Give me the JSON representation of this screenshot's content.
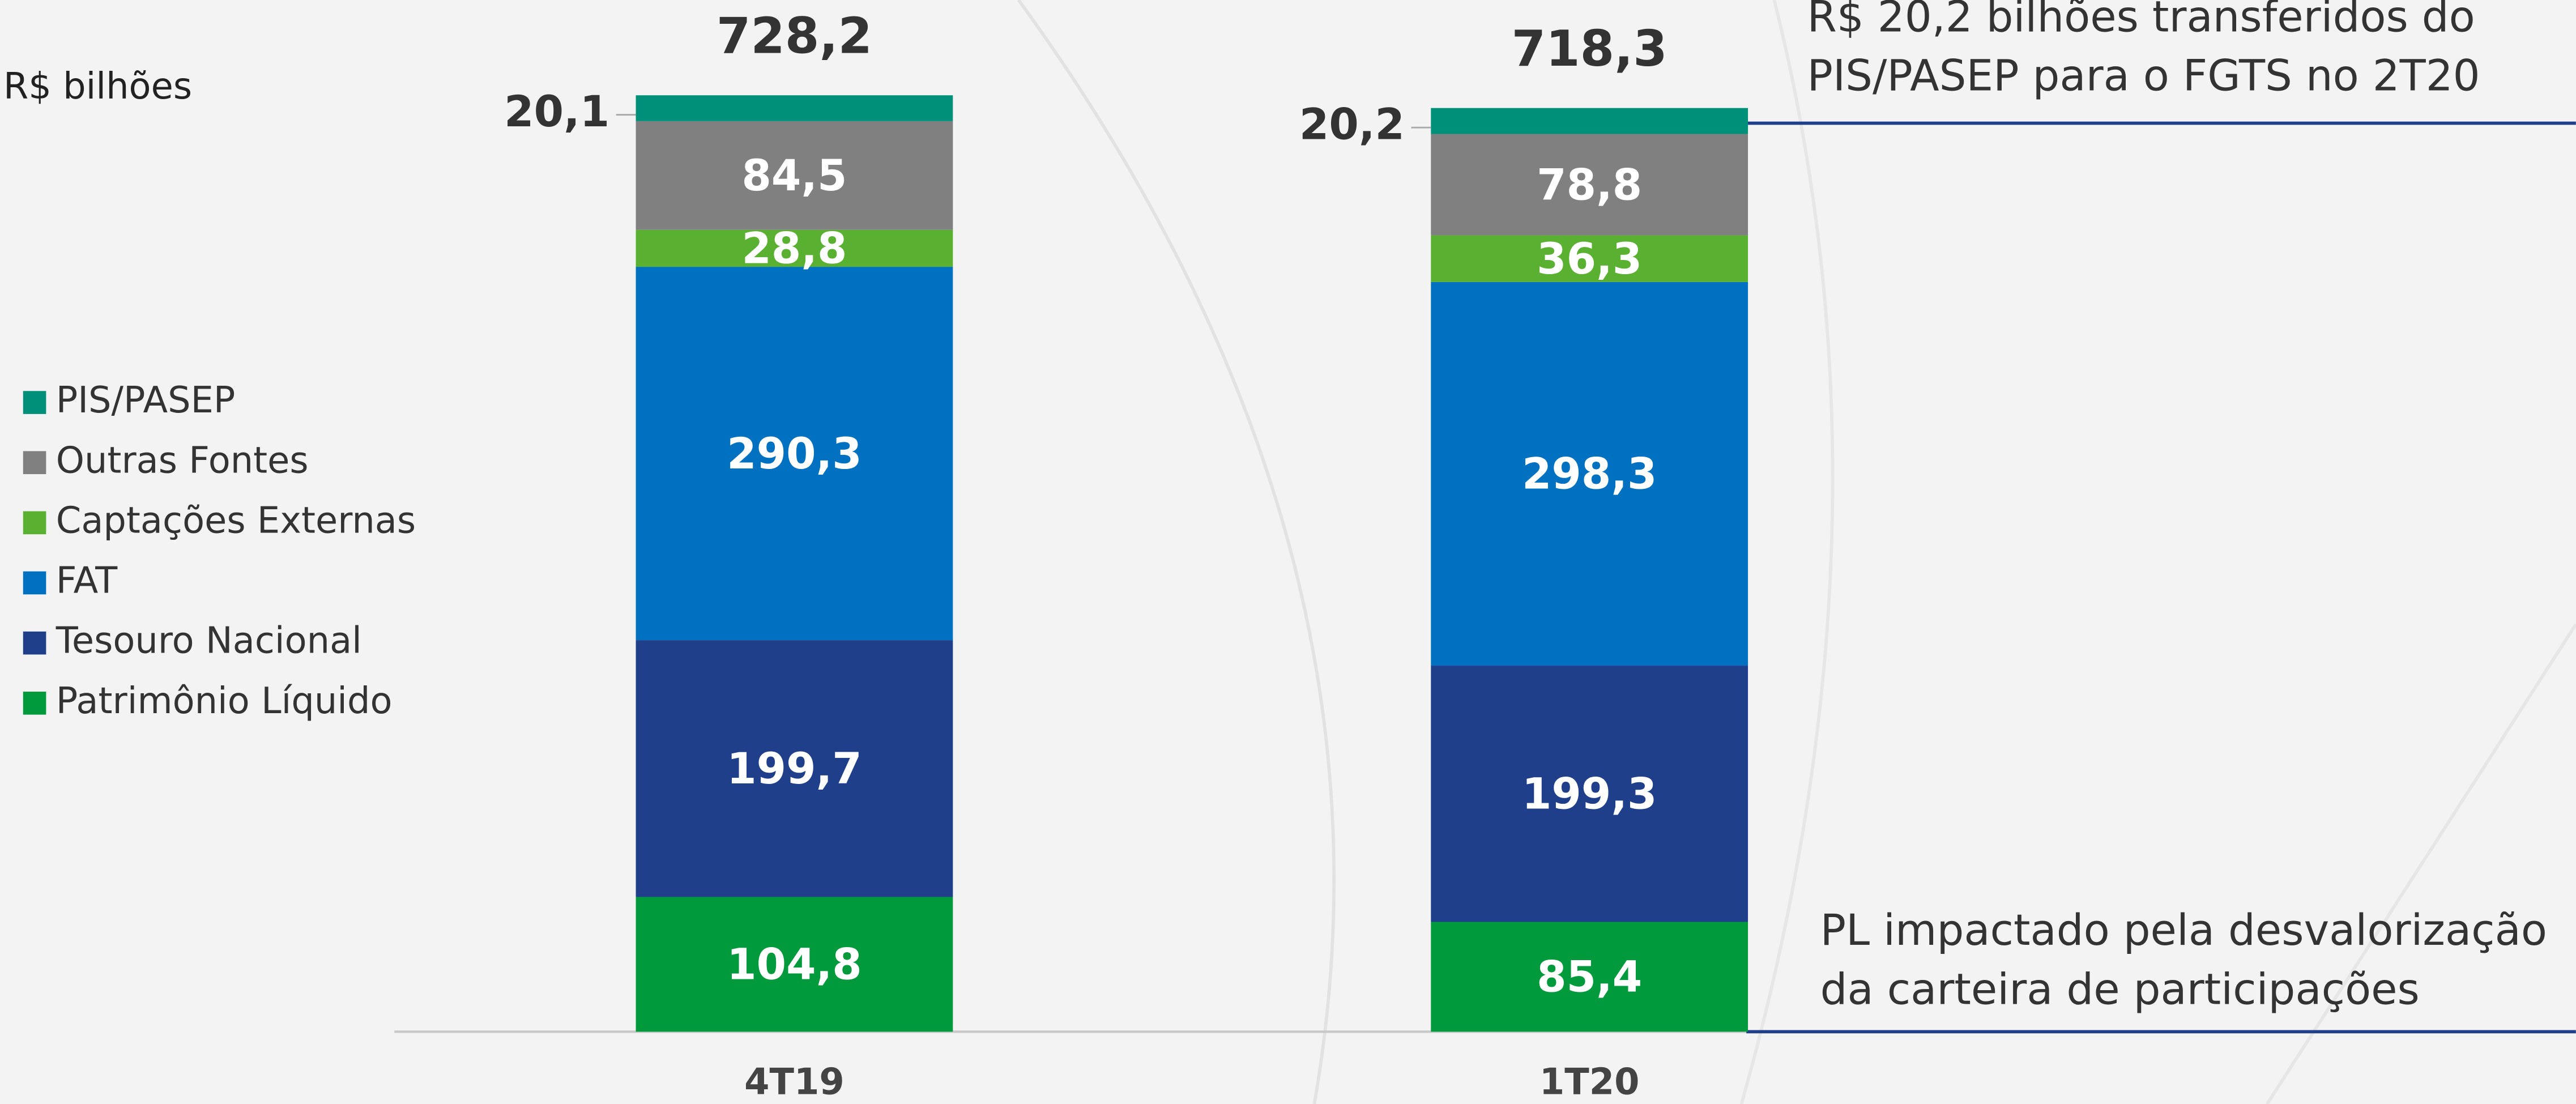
{
  "chart_data": {
    "type": "stacked_bar",
    "unit_label": "R$ bilhões",
    "categories": [
      "4T19",
      "1T20"
    ],
    "series": [
      {
        "name": "Patrimônio Líquido",
        "color": "#009a3c",
        "values": [
          104.8,
          85.4
        ],
        "value_labels": [
          "104,8",
          "85,4"
        ]
      },
      {
        "name": "Tesouro Nacional",
        "color": "#1f3f8a",
        "values": [
          199.7,
          199.3
        ],
        "value_labels": [
          "199,7",
          "199,3"
        ]
      },
      {
        "name": "FAT",
        "color": "#0070c0",
        "values": [
          290.3,
          298.3
        ],
        "value_labels": [
          "290,3",
          "298,3"
        ]
      },
      {
        "name": "Captações Externas",
        "color": "#5ab031",
        "values": [
          28.8,
          36.3
        ],
        "value_labels": [
          "28,8",
          "36,3"
        ]
      },
      {
        "name": "Outras Fontes",
        "color": "#808080",
        "values": [
          84.5,
          78.8
        ],
        "value_labels": [
          "84,5",
          "78,8"
        ]
      },
      {
        "name": "PIS/PASEP",
        "color": "#00907a",
        "values": [
          20.1,
          20.2
        ],
        "value_labels": [
          "20,1",
          "20,2"
        ]
      }
    ],
    "totals": [
      728.2,
      718.3
    ],
    "total_labels": [
      "728,2",
      "718,3"
    ],
    "annotations": [
      {
        "lines": [
          "R$ 20,2 bilhões transferidos do",
          "PIS/PASEP para o FGTS no 2T20"
        ]
      },
      {
        "lines": [
          "PL impactado pela desvalorização",
          "da carteira de participações"
        ]
      }
    ]
  }
}
